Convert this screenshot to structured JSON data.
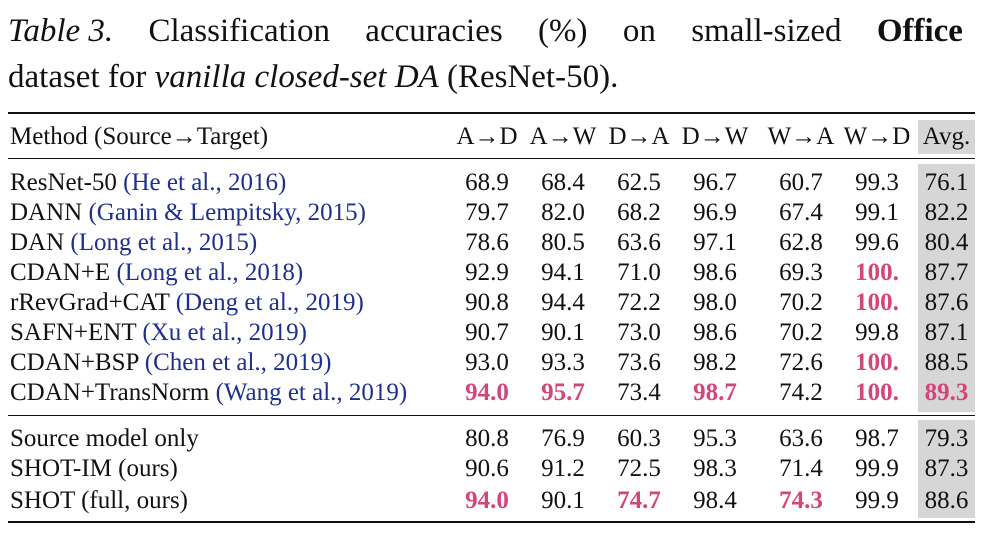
{
  "caption": {
    "label": "Table 3.",
    "w1": "Classification",
    "w2": "accuracies",
    "w3": "(%)",
    "w4": "on",
    "w5": "small-sized",
    "bold": "Office",
    "line2_pre": "dataset for ",
    "italic": "vanilla closed-set DA",
    "line2_post": " (ResNet-50)."
  },
  "header": {
    "method": "Method (Source→Target)",
    "cols": [
      "A→D",
      "A→W",
      "D→A",
      "D→W",
      "W→A",
      "W→D"
    ],
    "avg": "Avg."
  },
  "rows": [
    {
      "name": "ResNet-50 ",
      "cite": "(He et al., 2016)",
      "values": [
        "68.9",
        "68.4",
        "62.5",
        "96.7",
        "60.7",
        "99.3"
      ],
      "avg": "76.1"
    },
    {
      "name": "DANN ",
      "cite": "(Ganin & Lempitsky, 2015)",
      "values": [
        "79.7",
        "82.0",
        "68.2",
        "96.9",
        "67.4",
        "99.1"
      ],
      "avg": "82.2"
    },
    {
      "name": "DAN ",
      "cite": "(Long et al., 2015)",
      "values": [
        "78.6",
        "80.5",
        "63.6",
        "97.1",
        "62.8",
        "99.6"
      ],
      "avg": "80.4"
    },
    {
      "name": "CDAN+E ",
      "cite": "(Long et al., 2018)",
      "values": [
        "92.9",
        "94.1",
        "71.0",
        "98.6",
        "69.3",
        "100."
      ],
      "avg": "87.7"
    },
    {
      "name": "rRevGrad+CAT ",
      "cite": "(Deng et al., 2019)",
      "values": [
        "90.8",
        "94.4",
        "72.2",
        "98.0",
        "70.2",
        "100."
      ],
      "avg": "87.6"
    },
    {
      "name": "SAFN+ENT ",
      "cite": "(Xu et al., 2019)",
      "values": [
        "90.7",
        "90.1",
        "73.0",
        "98.6",
        "70.2",
        "99.8"
      ],
      "avg": "87.1"
    },
    {
      "name": "CDAN+BSP ",
      "cite": "(Chen et al., 2019)",
      "values": [
        "93.0",
        "93.3",
        "73.6",
        "98.2",
        "72.6",
        "100."
      ],
      "avg": "88.5"
    },
    {
      "name": "CDAN+TransNorm ",
      "cite": "(Wang et al., 2019)",
      "values": [
        "94.0",
        "95.7",
        "73.4",
        "98.7",
        "74.2",
        "100."
      ],
      "avg": "89.3"
    },
    {
      "name": "Source model only",
      "cite": "",
      "values": [
        "80.8",
        "76.9",
        "60.3",
        "95.3",
        "63.6",
        "98.7"
      ],
      "avg": "79.3"
    },
    {
      "name": "SHOT-IM (ours)",
      "cite": "",
      "values": [
        "90.6",
        "91.2",
        "72.5",
        "98.3",
        "71.4",
        "99.9"
      ],
      "avg": "87.3"
    },
    {
      "name": "SHOT (full, ours)",
      "cite": "",
      "values": [
        "94.0",
        "90.1",
        "74.7",
        "98.4",
        "74.3",
        "99.9"
      ],
      "avg": "88.6"
    }
  ],
  "highlight_color": "#d4457a",
  "citation_color": "#1f2f8c",
  "avg_shade": "#d6d6d6"
}
